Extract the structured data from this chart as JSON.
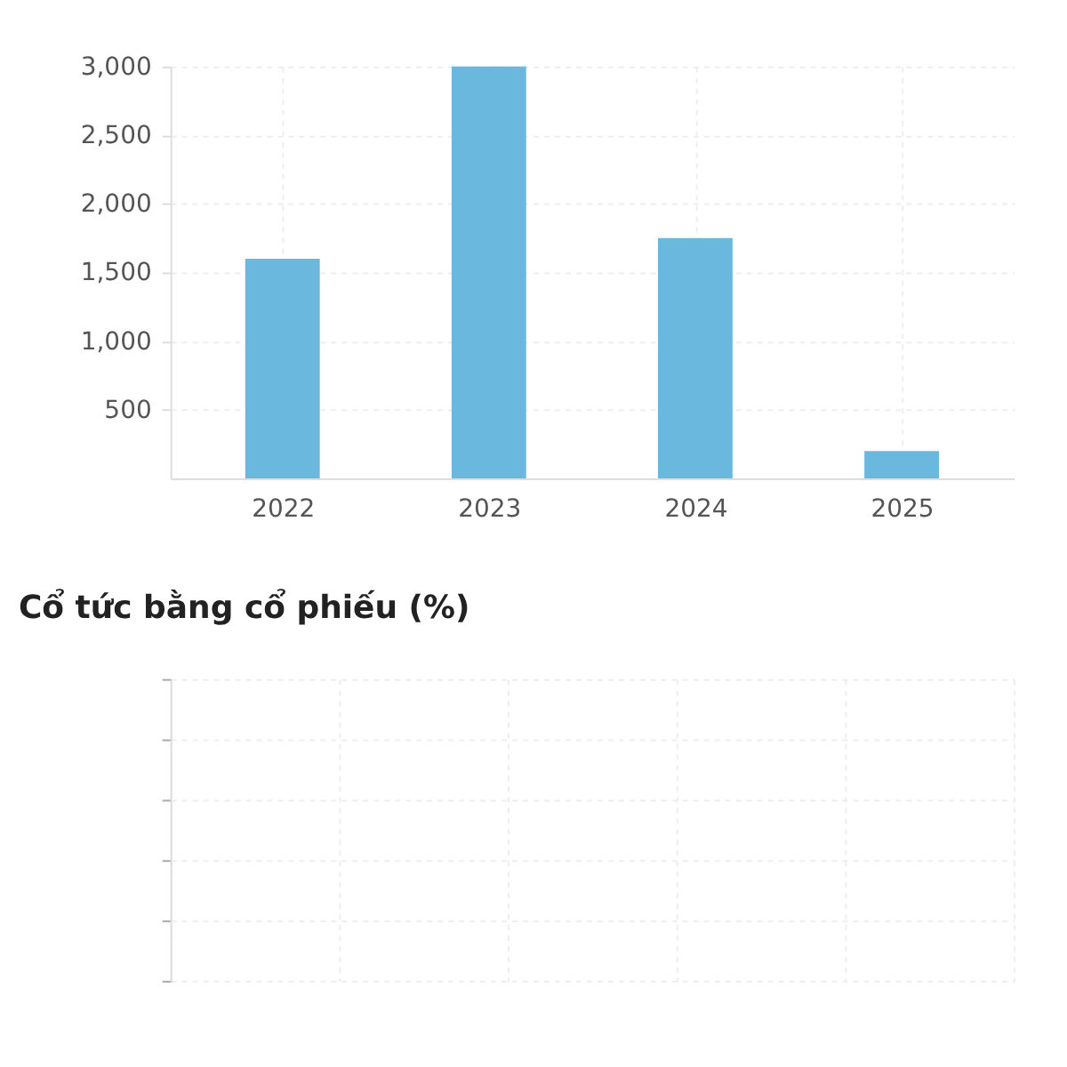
{
  "chart_data": [
    {
      "type": "bar",
      "categories": [
        "2022",
        "2023",
        "2024",
        "2025"
      ],
      "values": [
        1600,
        3000,
        1750,
        200
      ],
      "color": "#6bb8de",
      "ylim": [
        0,
        3000
      ],
      "yticks": [
        500,
        {
          "value": 1000,
          "label": "1,000"
        },
        {
          "value": 1500,
          "label": "1,500"
        },
        {
          "value": 2000,
          "label": "2,000"
        },
        {
          "value": 2500,
          "label": "2,500"
        },
        {
          "value": 3000,
          "label": "3,000"
        }
      ],
      "grid": true
    },
    {
      "type": "other",
      "title": "Cổ tức bằng cổ phiếu (%)"
    }
  ]
}
